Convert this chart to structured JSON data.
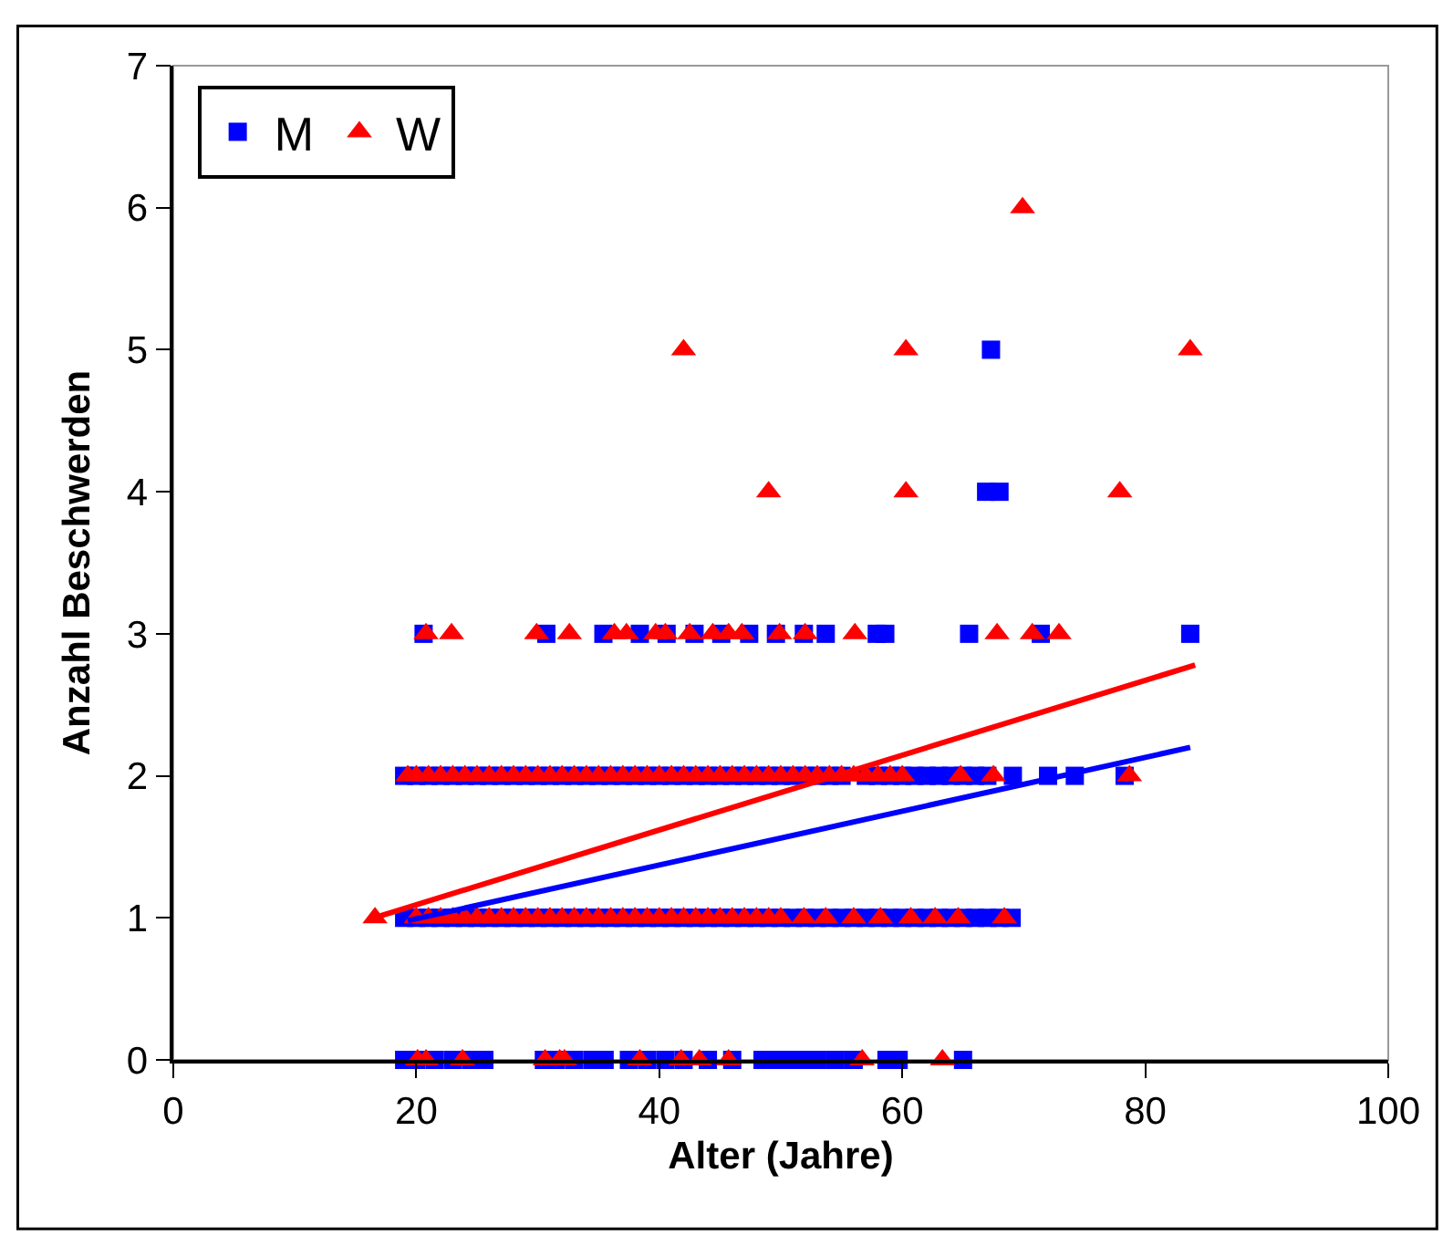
{
  "chart_data": {
    "type": "scatter",
    "xlabel": "Alter (Jahre)",
    "ylabel": "Anzahl Beschwerden",
    "xlim": [
      0,
      100
    ],
    "xticks": [
      0,
      20,
      40,
      60,
      80,
      100
    ],
    "ylim": [
      0,
      7
    ],
    "yticks": [
      0,
      1,
      2,
      3,
      4,
      5,
      6,
      7
    ],
    "grid": false,
    "legend": "top left",
    "series": [
      {
        "name": "M",
        "color": "#0000ff",
        "marker": "square",
        "x": [
          19,
          20,
          21.5,
          23,
          24.5,
          25.6,
          30.5,
          31.5,
          33,
          34.5,
          35.5,
          37.5,
          39,
          40.5,
          42,
          44,
          46,
          48.5,
          50,
          51.5,
          53,
          54.5,
          56,
          58.7,
          59.7,
          65,
          19,
          20,
          21,
          22,
          23,
          24,
          25,
          26,
          27,
          28,
          29,
          30,
          31,
          32,
          33,
          34,
          35,
          36,
          37,
          38,
          39,
          40,
          41,
          42,
          43,
          44,
          45,
          46,
          47,
          48,
          49,
          50,
          51,
          52,
          53,
          54,
          55,
          56,
          57,
          58,
          59,
          60,
          61,
          62,
          63,
          64,
          65,
          66,
          67,
          68,
          69,
          19,
          20,
          21,
          22,
          23,
          24,
          25,
          26,
          27,
          28,
          29,
          30,
          31,
          32,
          33,
          34,
          35,
          36,
          37,
          38,
          39,
          40,
          41,
          42,
          43,
          44,
          45,
          46,
          47,
          48,
          49,
          50,
          51,
          52,
          53,
          54,
          55,
          56,
          57,
          58,
          59,
          60,
          61,
          62,
          63,
          64,
          65,
          66,
          67,
          69.1,
          72,
          74.2,
          78.3,
          20.6,
          30.7,
          35.4,
          38.4,
          40.6,
          42.9,
          45.1,
          47.4,
          49.6,
          51.9,
          53.7,
          57.9,
          58.6,
          65.5,
          71.4,
          83.7,
          67.3,
          66.9,
          68
        ],
        "values": [
          0,
          0,
          0,
          0,
          0,
          0,
          0,
          0,
          0,
          0,
          0,
          0,
          0,
          0,
          0,
          0,
          0,
          0,
          0,
          0,
          0,
          0,
          0,
          0,
          0,
          0,
          1,
          1,
          1,
          1,
          1,
          1,
          1,
          1,
          1,
          1,
          1,
          1,
          1,
          1,
          1,
          1,
          1,
          1,
          1,
          1,
          1,
          1,
          1,
          1,
          1,
          1,
          1,
          1,
          1,
          1,
          1,
          1,
          1,
          1,
          1,
          1,
          1,
          1,
          1,
          1,
          1,
          1,
          1,
          1,
          1,
          1,
          1,
          1,
          1,
          1,
          1,
          2,
          2,
          2,
          2,
          2,
          2,
          2,
          2,
          2,
          2,
          2,
          2,
          2,
          2,
          2,
          2,
          2,
          2,
          2,
          2,
          2,
          2,
          2,
          2,
          2,
          2,
          2,
          2,
          2,
          2,
          2,
          2,
          2,
          2,
          2,
          2,
          2,
          null,
          2,
          2,
          2,
          2,
          2,
          2,
          2,
          2,
          2,
          2,
          2,
          2,
          2,
          2,
          2,
          3,
          3,
          3,
          3,
          3,
          3,
          3,
          3,
          3,
          3,
          3,
          3,
          3,
          3,
          3,
          3,
          5,
          4,
          4
        ]
      },
      {
        "name": "W",
        "color": "#ff0000",
        "marker": "triangle",
        "x": [
          20.1,
          20.8,
          23.8,
          30.6,
          31.8,
          32.2,
          38.4,
          41.8,
          43.3,
          45.7,
          56.7,
          63.3,
          16.6,
          20,
          21,
          22,
          23,
          24,
          25,
          26,
          27,
          28,
          29,
          30,
          31,
          32,
          33,
          34,
          35,
          36,
          37,
          38,
          39,
          40,
          41,
          42,
          43,
          44,
          45,
          46,
          47,
          48,
          49,
          50,
          51.9,
          53.7,
          56,
          58.2,
          60.7,
          62.7,
          64.6,
          68.4,
          19.3,
          20,
          21,
          22,
          23,
          24,
          25,
          26,
          27,
          28,
          29,
          30,
          31,
          32,
          33,
          34,
          35,
          36,
          37,
          38,
          39,
          40,
          41,
          42,
          43,
          44,
          45,
          46,
          47,
          48,
          49,
          50,
          51,
          52,
          53,
          54,
          55,
          56,
          57,
          58,
          59,
          60,
          64.8,
          67.5,
          78.7,
          20.8,
          22.9,
          29.9,
          32.6,
          36.3,
          37.3,
          39.7,
          40.5,
          42.5,
          44.4,
          45.7,
          46.8,
          49.9,
          52,
          56.1,
          67.8,
          70.7,
          72.9,
          42,
          60.3,
          83.7,
          69.9,
          49,
          60.3,
          77.9
        ],
        "values": [
          0,
          0,
          0,
          0,
          0,
          0,
          0,
          0,
          0,
          0,
          0,
          0,
          1,
          1,
          1,
          1,
          1,
          1,
          1,
          1,
          1,
          1,
          1,
          1,
          1,
          1,
          1,
          1,
          1,
          1,
          1,
          1,
          1,
          1,
          1,
          1,
          1,
          1,
          1,
          1,
          1,
          1,
          1,
          1,
          1,
          1,
          1,
          1,
          1,
          1,
          1,
          1,
          2,
          2,
          2,
          2,
          2,
          2,
          2,
          2,
          2,
          2,
          2,
          2,
          2,
          2,
          2,
          2,
          2,
          2,
          2,
          2,
          2,
          2,
          2,
          2,
          2,
          2,
          2,
          2,
          2,
          2,
          2,
          2,
          2,
          2,
          2,
          2,
          2,
          2,
          2,
          2,
          2,
          2,
          2,
          2,
          2,
          3,
          3,
          3,
          3,
          3,
          3,
          3,
          3,
          3,
          3,
          3,
          3,
          3,
          3,
          3,
          3,
          3,
          3,
          5,
          5,
          5,
          6,
          4,
          4,
          4
        ]
      },
      {
        "type": "line",
        "color": "#0000ff",
        "x": [
          19.3,
          83.7
        ],
        "values": [
          0.98,
          2.2
        ]
      },
      {
        "type": "line",
        "color": "#ff0000",
        "x": [
          16.5,
          84.1
        ],
        "values": [
          1.0,
          2.78
        ]
      }
    ]
  }
}
